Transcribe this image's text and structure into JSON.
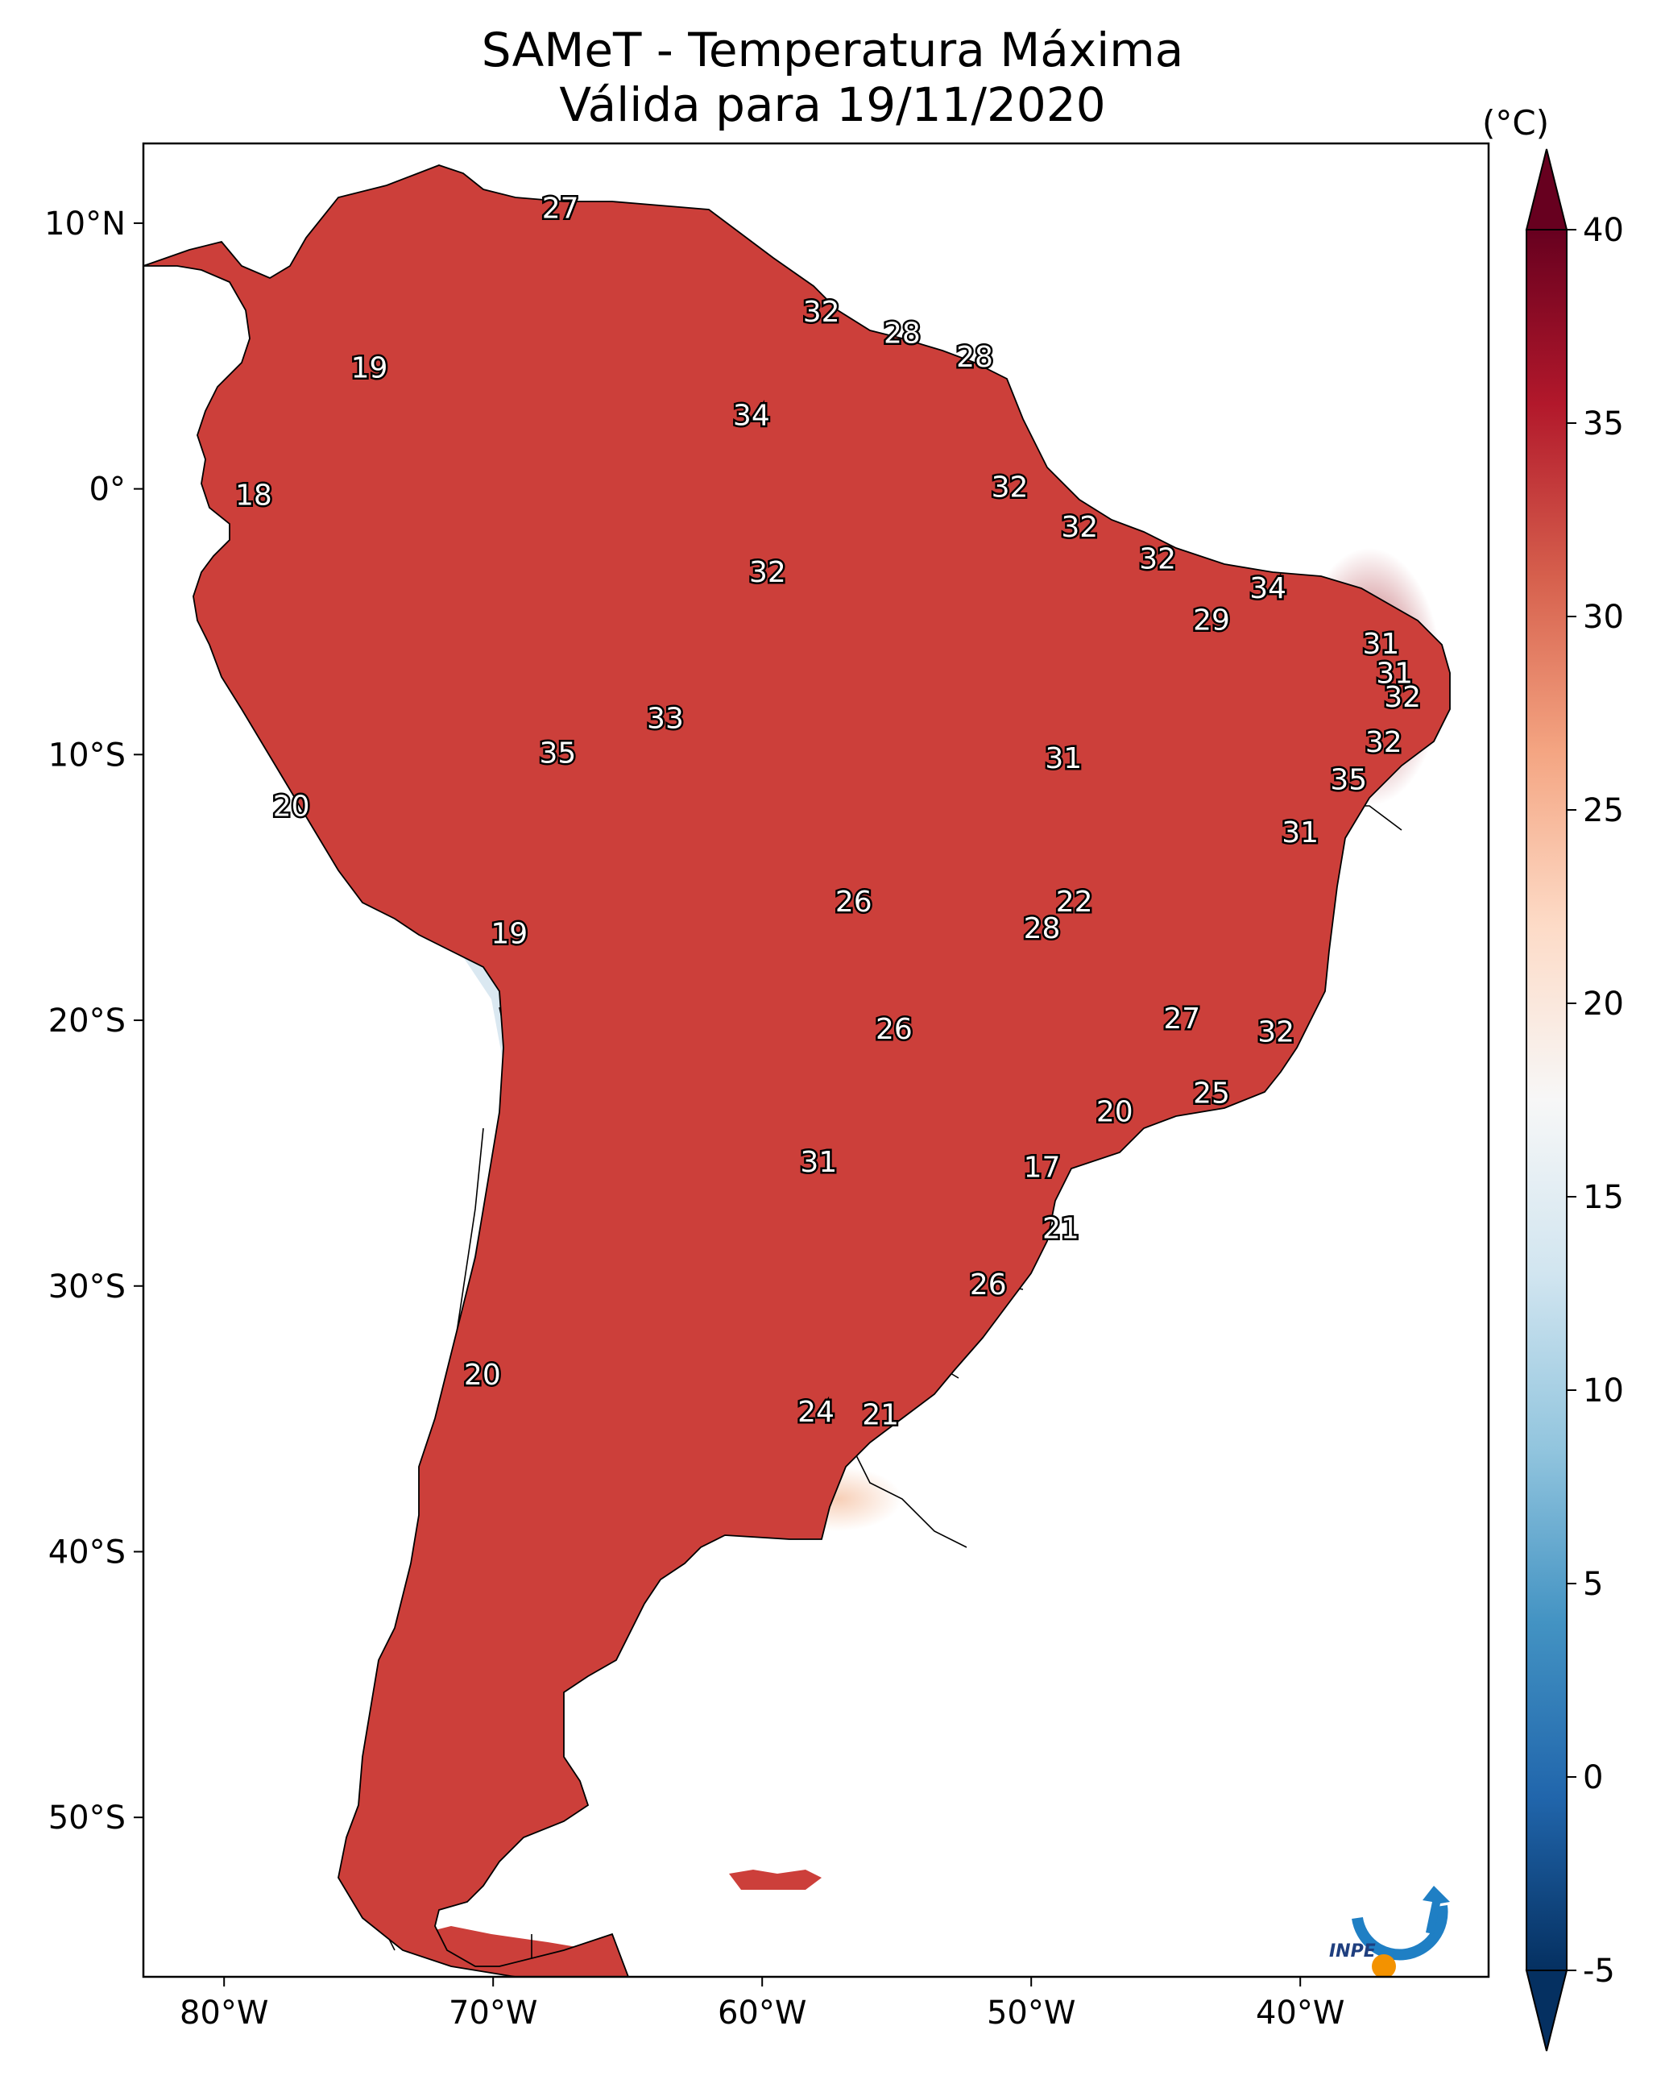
{
  "title": {
    "line1": "SAMeT - Temperatura Máxima",
    "line2": "Válida para 19/11/2020"
  },
  "map": {
    "lon_range": [
      -83,
      -33
    ],
    "lat_range": [
      -56,
      13
    ],
    "lon_ticks": [
      "80°W",
      "70°W",
      "60°W",
      "50°W",
      "40°W"
    ],
    "lat_ticks": [
      "10°N",
      "0°",
      "10°S",
      "20°S",
      "30°S",
      "40°S",
      "50°S"
    ],
    "land_color": "#cc3f3a",
    "ocean_color": "#ffffff"
  },
  "labels": [
    {
      "text": "27",
      "lon": -67.5,
      "lat": 10.5
    },
    {
      "text": "32",
      "lon": -57.8,
      "lat": 6.6
    },
    {
      "text": "28",
      "lon": -54.8,
      "lat": 5.8
    },
    {
      "text": "28",
      "lon": -52.1,
      "lat": 4.9
    },
    {
      "text": "19",
      "lon": -74.6,
      "lat": 4.5
    },
    {
      "text": "34",
      "lon": -60.4,
      "lat": 2.7
    },
    {
      "text": "32",
      "lon": -50.8,
      "lat": 0.0
    },
    {
      "text": "18",
      "lon": -78.9,
      "lat": -0.3
    },
    {
      "text": "32",
      "lon": -48.2,
      "lat": -1.5
    },
    {
      "text": "32",
      "lon": -45.3,
      "lat": -2.7
    },
    {
      "text": "32",
      "lon": -59.8,
      "lat": -3.2
    },
    {
      "text": "34",
      "lon": -41.2,
      "lat": -3.8
    },
    {
      "text": "29",
      "lon": -43.3,
      "lat": -5.0
    },
    {
      "text": "31",
      "lon": -37.0,
      "lat": -5.9
    },
    {
      "text": "31",
      "lon": -36.5,
      "lat": -7.0
    },
    {
      "text": "32",
      "lon": -36.2,
      "lat": -7.9
    },
    {
      "text": "33",
      "lon": -63.6,
      "lat": -8.7
    },
    {
      "text": "35",
      "lon": -67.6,
      "lat": -10.0
    },
    {
      "text": "31",
      "lon": -48.8,
      "lat": -10.2
    },
    {
      "text": "32",
      "lon": -36.9,
      "lat": -9.6
    },
    {
      "text": "35",
      "lon": -38.2,
      "lat": -11.0
    },
    {
      "text": "20",
      "lon": -77.5,
      "lat": -12.0
    },
    {
      "text": "31",
      "lon": -40.0,
      "lat": -13.0
    },
    {
      "text": "26",
      "lon": -56.6,
      "lat": -15.6
    },
    {
      "text": "22",
      "lon": -48.4,
      "lat": -15.6
    },
    {
      "text": "28",
      "lon": -49.6,
      "lat": -16.6
    },
    {
      "text": "19",
      "lon": -69.4,
      "lat": -16.8
    },
    {
      "text": "27",
      "lon": -44.4,
      "lat": -20.0
    },
    {
      "text": "26",
      "lon": -55.1,
      "lat": -20.4
    },
    {
      "text": "32",
      "lon": -40.9,
      "lat": -20.5
    },
    {
      "text": "25",
      "lon": -43.3,
      "lat": -22.8
    },
    {
      "text": "20",
      "lon": -46.9,
      "lat": -23.5
    },
    {
      "text": "17",
      "lon": -49.6,
      "lat": -25.6
    },
    {
      "text": "31",
      "lon": -57.9,
      "lat": -25.4
    },
    {
      "text": "21",
      "lon": -48.9,
      "lat": -27.9
    },
    {
      "text": "26",
      "lon": -51.6,
      "lat": -30.0
    },
    {
      "text": "20",
      "lon": -70.4,
      "lat": -33.4
    },
    {
      "text": "24",
      "lon": -58.0,
      "lat": -34.8
    },
    {
      "text": "21",
      "lon": -55.6,
      "lat": -34.9
    }
  ],
  "colorbar": {
    "unit": "(°C)",
    "ticks": [
      "-5",
      "0",
      "5",
      "10",
      "15",
      "20",
      "25",
      "30",
      "35",
      "40"
    ],
    "min": -5,
    "max": 40,
    "colors": [
      "#053061",
      "#2166ac",
      "#4393c3",
      "#92c5de",
      "#d1e5f0",
      "#f7f7f7",
      "#fddbc7",
      "#f4a582",
      "#d6604d",
      "#b2182b",
      "#67001f"
    ]
  },
  "logo": {
    "text": "INPE",
    "ring_color": "#1f7fc4",
    "dot_color": "#f39200"
  }
}
